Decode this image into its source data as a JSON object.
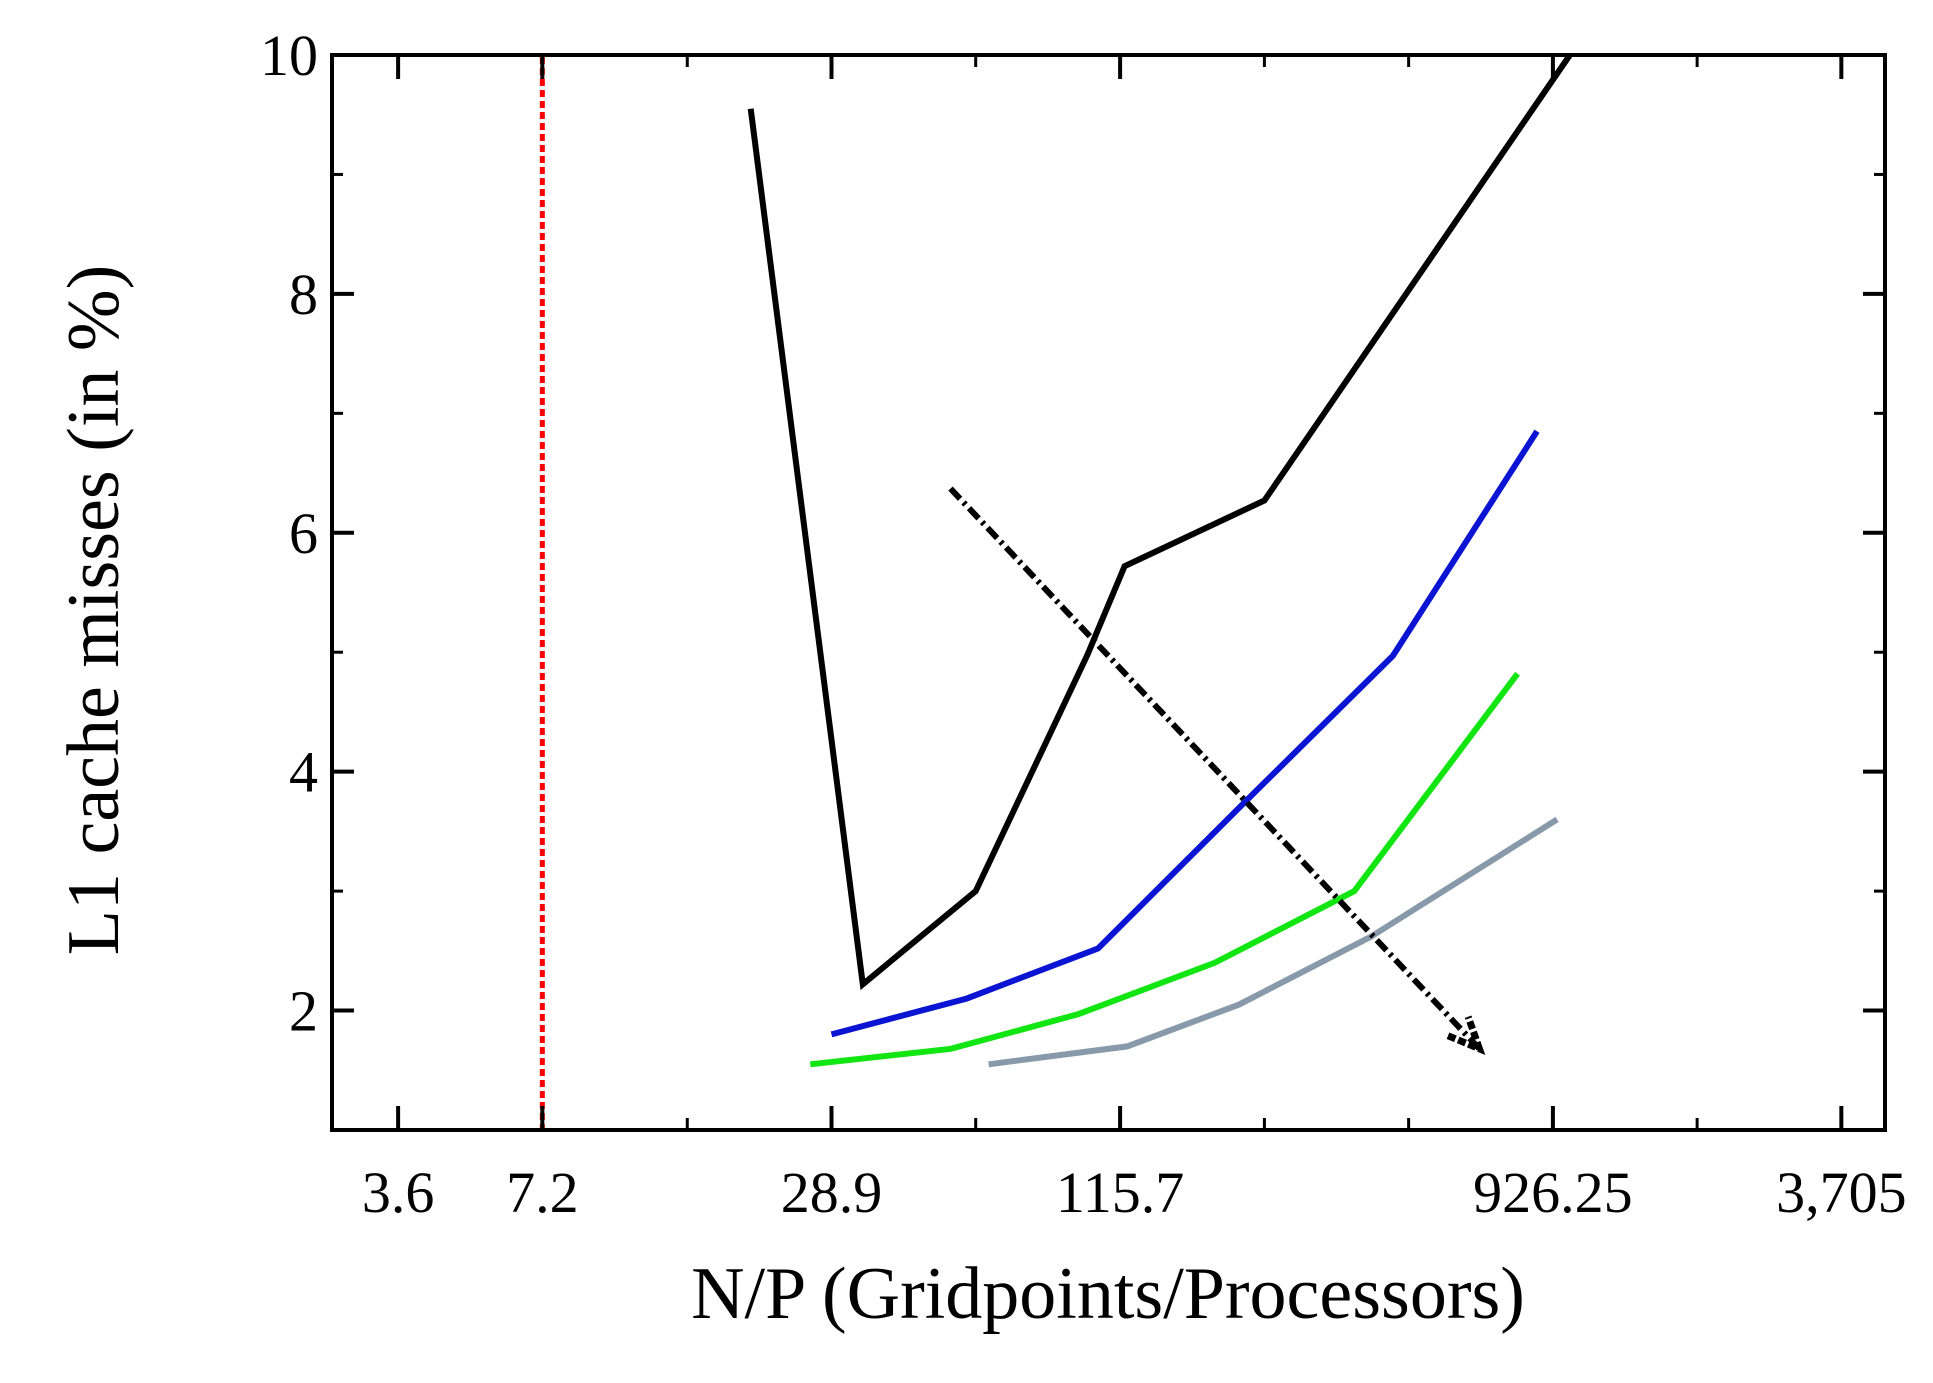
{
  "chart_data": {
    "type": "line",
    "title": "",
    "xlabel": "N/P (Gridpoints/Processors)",
    "ylabel": "L1 cache misses (in %)",
    "x_scale": "log2",
    "xlim": [
      2.62,
      4570
    ],
    "ylim": [
      1.0,
      10.0
    ],
    "x_ticks": [
      {
        "value": 3.6,
        "label": "3.6"
      },
      {
        "value": 7.2,
        "label": "7.2"
      },
      {
        "value": 28.9,
        "label": "28.9"
      },
      {
        "value": 115.7,
        "label": "115.7"
      },
      {
        "value": 926.25,
        "label": "926.25"
      },
      {
        "value": 3705,
        "label": "3,705"
      }
    ],
    "x_minor_ticks": [
      14.45,
      57.8,
      231.5,
      463,
      1852.5
    ],
    "y_ticks": [
      {
        "value": 2,
        "label": "2"
      },
      {
        "value": 4,
        "label": "4"
      },
      {
        "value": 6,
        "label": "6"
      },
      {
        "value": 8,
        "label": "8"
      },
      {
        "value": 10,
        "label": "10"
      }
    ],
    "series": [
      {
        "color": "#000000",
        "x": [
          19.6,
          33.6,
          57.8,
          98.9,
          118.2,
          231.5,
          1005
        ],
        "y": [
          9.55,
          2.22,
          3.0,
          4.98,
          5.72,
          6.27,
          10.0
        ]
      },
      {
        "color": "#0a14d2",
        "x": [
          28.9,
          55.3,
          104.1,
          211.3,
          429.2,
          858.1
        ],
        "y": [
          1.8,
          2.1,
          2.52,
          3.75,
          4.97,
          6.85
        ]
      },
      {
        "color": "#12e612",
        "x": [
          26.1,
          51.3,
          94.7,
          182.3,
          356.6,
          781.3
        ],
        "y": [
          1.55,
          1.68,
          1.97,
          2.4,
          3.0,
          4.82
        ]
      },
      {
        "color": "#8899aa",
        "x": [
          61.5,
          119.7,
          204.9,
          386.8,
          944.9
        ],
        "y": [
          1.55,
          1.7,
          2.05,
          2.62,
          3.6
        ]
      }
    ],
    "threshold_line": {
      "x": 7.2,
      "color": "#ff0000",
      "style": "dotted"
    },
    "trend_arrow": {
      "from": {
        "x": 51.2,
        "y": 6.37
      },
      "to": {
        "x": 650.6,
        "y": 1.68
      },
      "color": "#000000",
      "style": "dash-dot"
    },
    "grid": false,
    "legend": "none"
  }
}
